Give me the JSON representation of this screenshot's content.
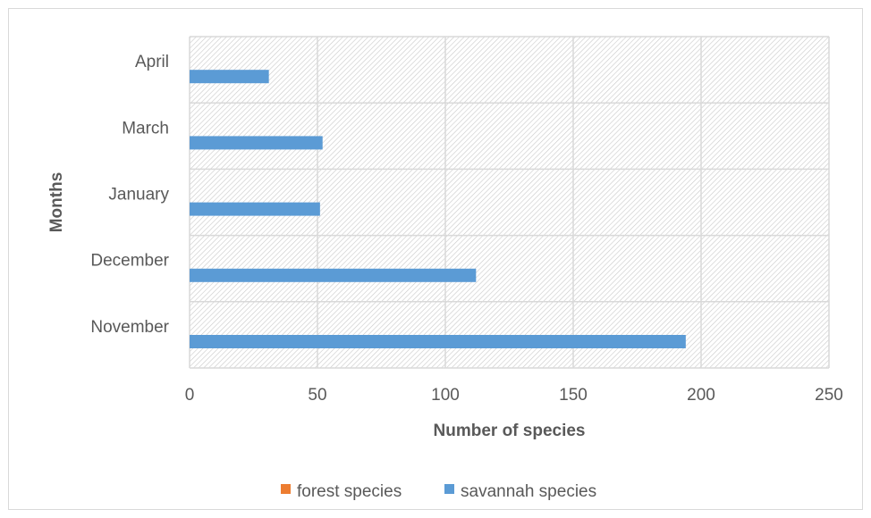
{
  "chart_data": {
    "type": "bar",
    "orientation": "horizontal",
    "categories": [
      "November",
      "December",
      "January",
      "March",
      "April"
    ],
    "series": [
      {
        "name": "forest species",
        "color": "#ed7d31",
        "values": [
          0,
          0,
          0,
          0,
          0
        ]
      },
      {
        "name": "savannah species",
        "color": "#5b9bd5",
        "values": [
          194,
          112,
          51,
          52,
          31
        ]
      }
    ],
    "xlabel": "Number of species",
    "ylabel": "Months",
    "xlim": [
      0,
      250
    ],
    "xticks": [
      0,
      50,
      100,
      150,
      200,
      250
    ],
    "grid": true,
    "plot_background": "hatched",
    "legend_position": "bottom"
  }
}
